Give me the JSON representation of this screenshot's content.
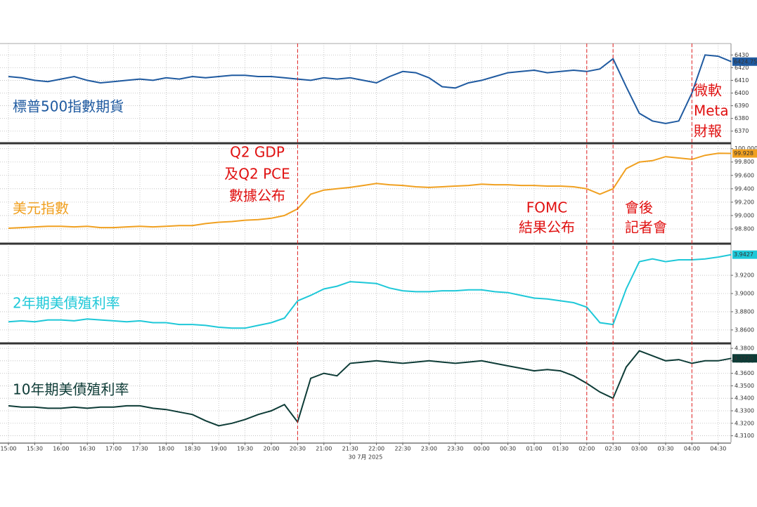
{
  "chart_data": [
    {
      "type": "line",
      "x": [
        "15:00",
        "15:15",
        "15:30",
        "15:45",
        "16:00",
        "16:15",
        "16:30",
        "16:45",
        "17:00",
        "17:15",
        "17:30",
        "17:45",
        "18:00",
        "18:15",
        "18:30",
        "18:45",
        "19:00",
        "19:15",
        "19:30",
        "19:45",
        "20:00",
        "20:15",
        "20:30",
        "20:45",
        "21:00",
        "21:15",
        "21:30",
        "21:45",
        "22:00",
        "22:15",
        "22:30",
        "22:45",
        "23:00",
        "23:15",
        "23:30",
        "23:45",
        "00:00",
        "00:15",
        "00:30",
        "00:45",
        "01:00",
        "01:15",
        "01:30",
        "01:45",
        "02:00",
        "02:15",
        "02:30",
        "02:45",
        "03:00",
        "03:15",
        "03:30",
        "03:45",
        "04:00",
        "04:15",
        "04:30",
        "04:45"
      ],
      "series": [
        {
          "name": "標普500指數期貨",
          "color": "#1f5aa0",
          "values": [
            6413,
            6412,
            6410,
            6409,
            6411,
            6413,
            6410,
            6408,
            6409,
            6410,
            6411,
            6410,
            6412,
            6411,
            6413,
            6412,
            6413,
            6414,
            6414,
            6413,
            6413,
            6412,
            6411,
            6410,
            6412,
            6411,
            6412,
            6410,
            6408,
            6413,
            6417,
            6416,
            6412,
            6405,
            6404,
            6408,
            6410,
            6413,
            6416,
            6417,
            6418,
            6416,
            6417,
            6418,
            6417,
            6419,
            6427,
            6405,
            6384,
            6378,
            6376,
            6378,
            6400,
            6430,
            6429,
            6424.75
          ]
        }
      ],
      "ylim": [
        6361,
        6439
      ],
      "yticks": [
        6370,
        6380,
        6390,
        6400,
        6410,
        6420,
        6430
      ],
      "grid": true
    },
    {
      "type": "line",
      "x": [
        "15:00",
        "15:15",
        "15:30",
        "15:45",
        "16:00",
        "16:15",
        "16:30",
        "16:45",
        "17:00",
        "17:15",
        "17:30",
        "17:45",
        "18:00",
        "18:15",
        "18:30",
        "18:45",
        "19:00",
        "19:15",
        "19:30",
        "19:45",
        "20:00",
        "20:15",
        "20:30",
        "20:45",
        "21:00",
        "21:15",
        "21:30",
        "21:45",
        "22:00",
        "22:15",
        "22:30",
        "22:45",
        "23:00",
        "23:15",
        "23:30",
        "23:45",
        "00:00",
        "00:15",
        "00:30",
        "00:45",
        "01:00",
        "01:15",
        "01:30",
        "01:45",
        "02:00",
        "02:15",
        "02:30",
        "02:45",
        "03:00",
        "03:15",
        "03:30",
        "03:45",
        "04:00",
        "04:15",
        "04:30",
        "04:45"
      ],
      "series": [
        {
          "name": "美元指數",
          "color": "#f0a020",
          "values": [
            98.81,
            98.82,
            98.83,
            98.84,
            98.84,
            98.83,
            98.84,
            98.82,
            98.82,
            98.83,
            98.84,
            98.83,
            98.84,
            98.85,
            98.85,
            98.88,
            98.9,
            98.91,
            98.93,
            98.94,
            98.96,
            99.0,
            99.1,
            99.32,
            99.38,
            99.4,
            99.42,
            99.45,
            99.48,
            99.46,
            99.45,
            99.43,
            99.42,
            99.43,
            99.44,
            99.45,
            99.47,
            99.46,
            99.46,
            99.45,
            99.45,
            99.44,
            99.44,
            99.43,
            99.4,
            99.32,
            99.4,
            99.7,
            99.8,
            99.82,
            99.88,
            99.86,
            99.84,
            99.9,
            99.93,
            99.928
          ]
        }
      ],
      "ylim": [
        98.59,
        100.07
      ],
      "yticks": [
        {
          "value": 98.8,
          "label": "98.800"
        },
        {
          "value": 99.0,
          "label": "99.000"
        },
        {
          "value": 99.2,
          "label": "99.200"
        },
        {
          "value": 99.4,
          "label": "99.400"
        },
        {
          "value": 99.6,
          "label": "99.600"
        },
        {
          "value": 99.8,
          "label": "99.800"
        },
        {
          "value": 100,
          "label": "100.000"
        }
      ],
      "grid": true
    },
    {
      "type": "line",
      "x": [
        "15:00",
        "15:15",
        "15:30",
        "15:45",
        "16:00",
        "16:15",
        "16:30",
        "16:45",
        "17:00",
        "17:15",
        "17:30",
        "17:45",
        "18:00",
        "18:15",
        "18:30",
        "18:45",
        "19:00",
        "19:15",
        "19:30",
        "19:45",
        "20:00",
        "20:15",
        "20:30",
        "20:45",
        "21:00",
        "21:15",
        "21:30",
        "21:45",
        "22:00",
        "22:15",
        "22:30",
        "22:45",
        "23:00",
        "23:15",
        "23:30",
        "23:45",
        "00:00",
        "00:15",
        "00:30",
        "00:45",
        "01:00",
        "01:15",
        "01:30",
        "01:45",
        "02:00",
        "02:15",
        "02:30",
        "02:45",
        "03:00",
        "03:15",
        "03:30",
        "03:45",
        "04:00",
        "04:15",
        "04:30",
        "04:45"
      ],
      "series": [
        {
          "name": "2年期美債殖利率",
          "color": "#1ec8d8",
          "values": [
            3.869,
            3.87,
            3.869,
            3.871,
            3.871,
            3.87,
            3.872,
            3.871,
            3.87,
            3.869,
            3.87,
            3.868,
            3.868,
            3.866,
            3.866,
            3.865,
            3.863,
            3.862,
            3.862,
            3.865,
            3.868,
            3.873,
            3.892,
            3.898,
            3.905,
            3.908,
            3.913,
            3.912,
            3.911,
            3.906,
            3.903,
            3.902,
            3.902,
            3.903,
            3.903,
            3.904,
            3.904,
            3.902,
            3.901,
            3.898,
            3.895,
            3.894,
            3.892,
            3.89,
            3.885,
            3.868,
            3.866,
            3.905,
            3.935,
            3.938,
            3.935,
            3.937,
            3.937,
            3.938,
            3.94,
            3.9427
          ]
        }
      ],
      "ylim": [
        3.846,
        3.954
      ],
      "yticks": [
        {
          "value": 3.86,
          "label": "3.8600"
        },
        {
          "value": 3.88,
          "label": "3.8800"
        },
        {
          "value": 3.9,
          "label": "3.9000"
        },
        {
          "value": 3.92,
          "label": "3.9200"
        }
      ],
      "grid": true
    },
    {
      "type": "line",
      "x": [
        "15:00",
        "15:15",
        "15:30",
        "15:45",
        "16:00",
        "16:15",
        "16:30",
        "16:45",
        "17:00",
        "17:15",
        "17:30",
        "17:45",
        "18:00",
        "18:15",
        "18:30",
        "18:45",
        "19:00",
        "19:15",
        "19:30",
        "19:45",
        "20:00",
        "20:15",
        "20:30",
        "20:45",
        "21:00",
        "21:15",
        "21:30",
        "21:45",
        "22:00",
        "22:15",
        "22:30",
        "22:45",
        "23:00",
        "23:15",
        "23:30",
        "23:45",
        "00:00",
        "00:15",
        "00:30",
        "00:45",
        "01:00",
        "01:15",
        "01:30",
        "01:45",
        "02:00",
        "02:15",
        "02:30",
        "02:45",
        "03:00",
        "03:15",
        "03:30",
        "03:45",
        "04:00",
        "04:15",
        "04:30",
        "04:45"
      ],
      "series": [
        {
          "name": "10年期美債殖利率",
          "color": "#0d3b36",
          "values": [
            4.334,
            4.333,
            4.333,
            4.332,
            4.332,
            4.333,
            4.332,
            4.333,
            4.333,
            4.334,
            4.334,
            4.332,
            4.331,
            4.329,
            4.327,
            4.322,
            4.318,
            4.32,
            4.323,
            4.327,
            4.33,
            4.335,
            4.321,
            4.356,
            4.36,
            4.358,
            4.368,
            4.369,
            4.37,
            4.369,
            4.368,
            4.369,
            4.37,
            4.369,
            4.368,
            4.369,
            4.37,
            4.368,
            4.366,
            4.364,
            4.362,
            4.363,
            4.362,
            4.358,
            4.352,
            4.345,
            4.34,
            4.365,
            4.378,
            4.374,
            4.37,
            4.371,
            4.368,
            4.37,
            4.37,
            4.372
          ]
        }
      ],
      "last_value_label": "4.3720",
      "ylim": [
        4.3047,
        4.3834
      ],
      "yticks": [
        {
          "value": 4.31,
          "label": "4.3100"
        },
        {
          "value": 4.32,
          "label": "4.3200"
        },
        {
          "value": 4.33,
          "label": "4.3300"
        },
        {
          "value": 4.34,
          "label": "4.3400"
        },
        {
          "value": 4.35,
          "label": "4.3500"
        },
        {
          "value": 4.36,
          "label": "4.3600"
        },
        {
          "value": 4.37,
          "label": "4.3700"
        },
        {
          "value": 4.38,
          "label": "4.3800"
        }
      ],
      "grid": true,
      "xticks": [
        "15:00",
        "15:30",
        "16:00",
        "16:30",
        "17:00",
        "17:30",
        "18:00",
        "18:30",
        "19:00",
        "19:30",
        "20:00",
        "20:30",
        "21:00",
        "21:30",
        "22:00",
        "22:30",
        "23:00",
        "23:30",
        "00:00",
        "00:30",
        "01:00",
        "01:30",
        "02:00",
        "02:30",
        "03:00",
        "03:30",
        "04:00",
        "04:30"
      ],
      "xlabel": "30 7月 2025"
    }
  ],
  "events": [
    {
      "x": "20:30",
      "label": [
        "Q2 GDP",
        "及Q2 PCE",
        "數據公布"
      ]
    },
    {
      "x": "02:00",
      "label": [
        "FOMC",
        "結果公布"
      ]
    },
    {
      "x": "02:30",
      "label": [
        "會後",
        "記者會"
      ]
    },
    {
      "x": "04:00",
      "label": [
        "微軟",
        "Meta",
        "財報"
      ]
    }
  ]
}
